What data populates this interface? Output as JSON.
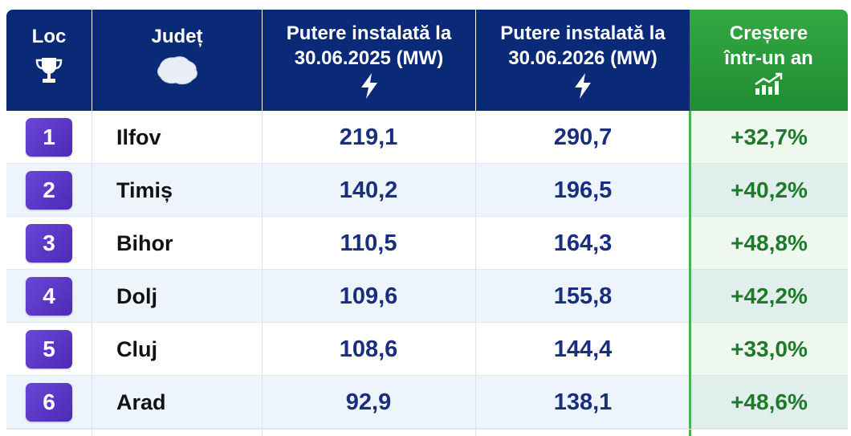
{
  "header": {
    "loc": "Loc",
    "judet": "Județ",
    "col_2025": "Putere instalată la\n30.06.2025 (MW)",
    "col_2026": "Putere instalată la\n30.06.2026 (MW)",
    "growth": "Creștere\nîntr-un an",
    "icons": [
      "trophy-icon",
      "romania-map-icon",
      "lightning-icon",
      "lightning-icon",
      "growth-chart-icon"
    ]
  },
  "colors": {
    "header_blue": "#0a2a78",
    "header_green": "#2c9c3d",
    "badge_purple": "#5a36c6",
    "value_blue": "#1a2e7e",
    "growth_green": "#1e7a2a"
  },
  "rows": [
    {
      "rank": "1",
      "county": "Ilfov",
      "v2025": "219,1",
      "v2026": "290,7",
      "growth": "+32,7%"
    },
    {
      "rank": "2",
      "county": "Timiș",
      "v2025": "140,2",
      "v2026": "196,5",
      "growth": "+40,2%"
    },
    {
      "rank": "3",
      "county": "Bihor",
      "v2025": "110,5",
      "v2026": "164,3",
      "growth": "+48,8%"
    },
    {
      "rank": "4",
      "county": "Dolj",
      "v2025": "109,6",
      "v2026": "155,8",
      "growth": "+42,2%"
    },
    {
      "rank": "5",
      "county": "Cluj",
      "v2025": "108,6",
      "v2026": "144,4",
      "growth": "+33,0%"
    },
    {
      "rank": "6",
      "county": "Arad",
      "v2025": "92,9",
      "v2026": "138,1",
      "growth": "+48,6%"
    }
  ]
}
